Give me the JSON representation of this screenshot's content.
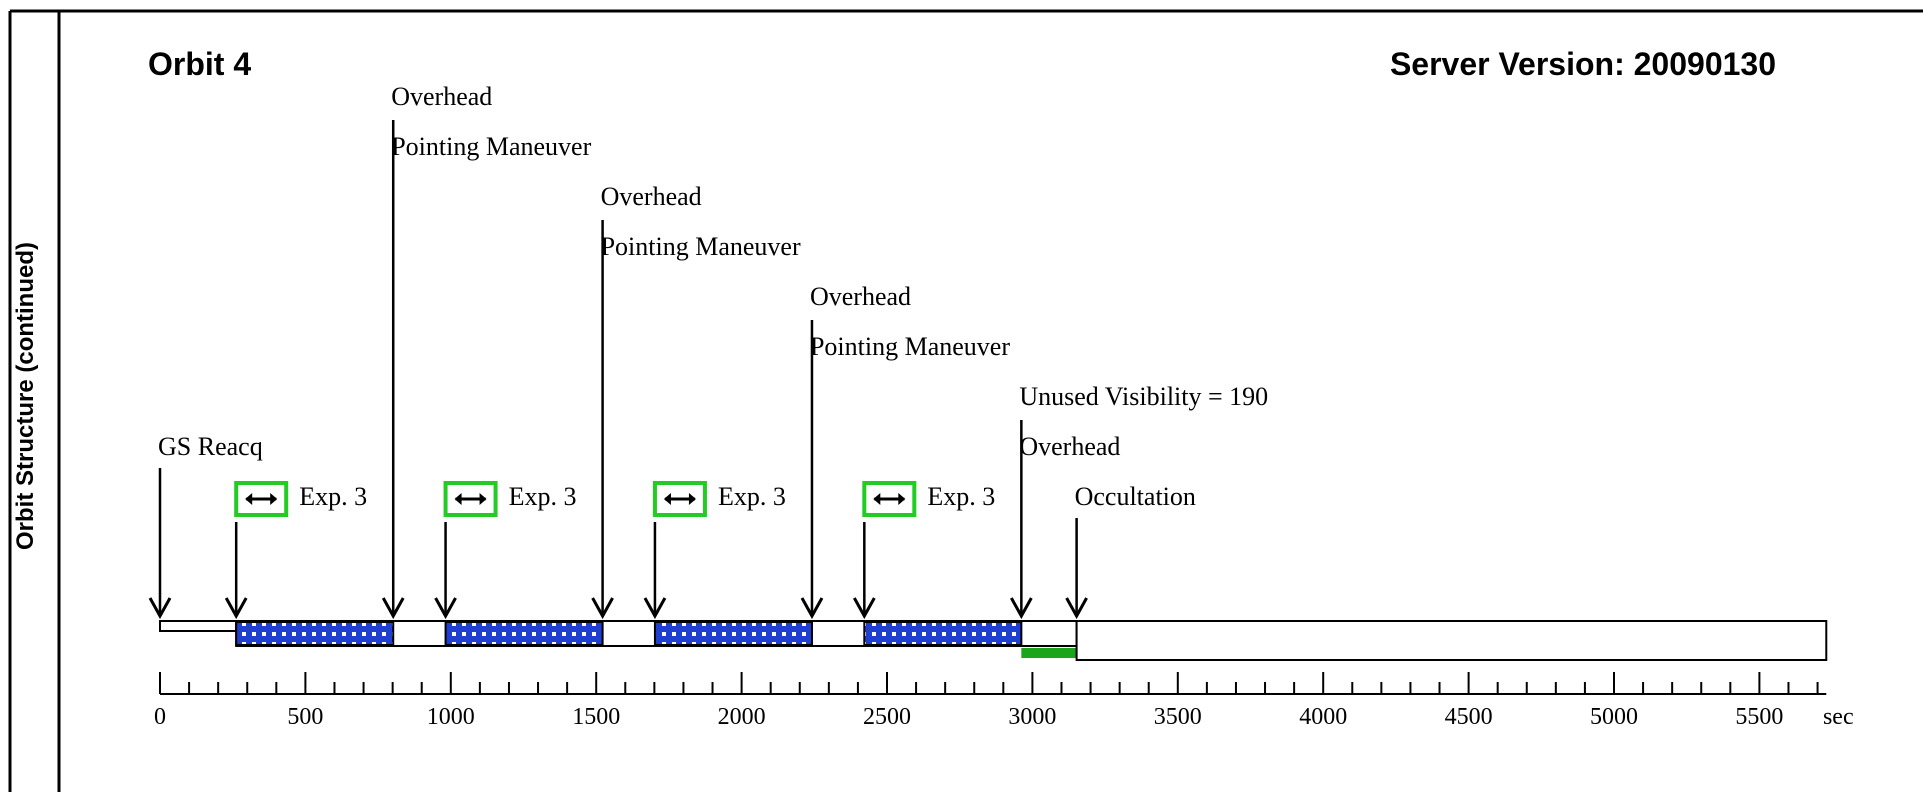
{
  "side_label": "Orbit Structure (continued)",
  "header": {
    "orbit_title": "Orbit 4",
    "server_version": "Server Version: 20090130"
  },
  "axis": {
    "min": 0,
    "max": 5730,
    "tick_labels": [
      "0",
      "500",
      "1000",
      "1500",
      "2000",
      "2500",
      "3000",
      "3500",
      "4000",
      "4500",
      "5000",
      "5500"
    ],
    "unit": "sec"
  },
  "events": [
    {
      "id": "gs-reacq",
      "time": 0,
      "labels": [
        "GS Reacq"
      ]
    },
    {
      "id": "exp-1-start",
      "time": 262,
      "labels": []
    },
    {
      "id": "overhead-1",
      "time": 802,
      "labels": [
        "Overhead",
        "Pointing Maneuver"
      ]
    },
    {
      "id": "exp-2-start",
      "time": 982,
      "labels": []
    },
    {
      "id": "overhead-2",
      "time": 1522,
      "labels": [
        "Overhead",
        "Pointing Maneuver"
      ]
    },
    {
      "id": "exp-3-start",
      "time": 1702,
      "labels": []
    },
    {
      "id": "overhead-3",
      "time": 2242,
      "labels": [
        "Overhead",
        "Pointing Maneuver"
      ]
    },
    {
      "id": "exp-4-start",
      "time": 2422,
      "labels": []
    },
    {
      "id": "unused-overhead",
      "time": 2962,
      "labels": [
        "Unused Visibility = 190",
        "Overhead"
      ]
    },
    {
      "id": "occultation",
      "time": 3152,
      "labels": [
        "Occultation"
      ]
    }
  ],
  "exposures": [
    {
      "label": "Exp. 3",
      "start": 262,
      "end": 802
    },
    {
      "label": "Exp. 3",
      "start": 982,
      "end": 1522
    },
    {
      "label": "Exp. 3",
      "start": 1702,
      "end": 2242
    },
    {
      "label": "Exp. 3",
      "start": 2422,
      "end": 2962
    }
  ],
  "unused_visibility": {
    "start": 2962,
    "end": 3152
  },
  "occultation_span": {
    "start": 3152,
    "end": 5730
  },
  "colors": {
    "exposure_fill": "#1f3fd0",
    "exposure_dots": "#ffffff",
    "unused_visibility": "#1aa51a",
    "exposure_icon_border": "#22cc22",
    "line": "#000000"
  }
}
